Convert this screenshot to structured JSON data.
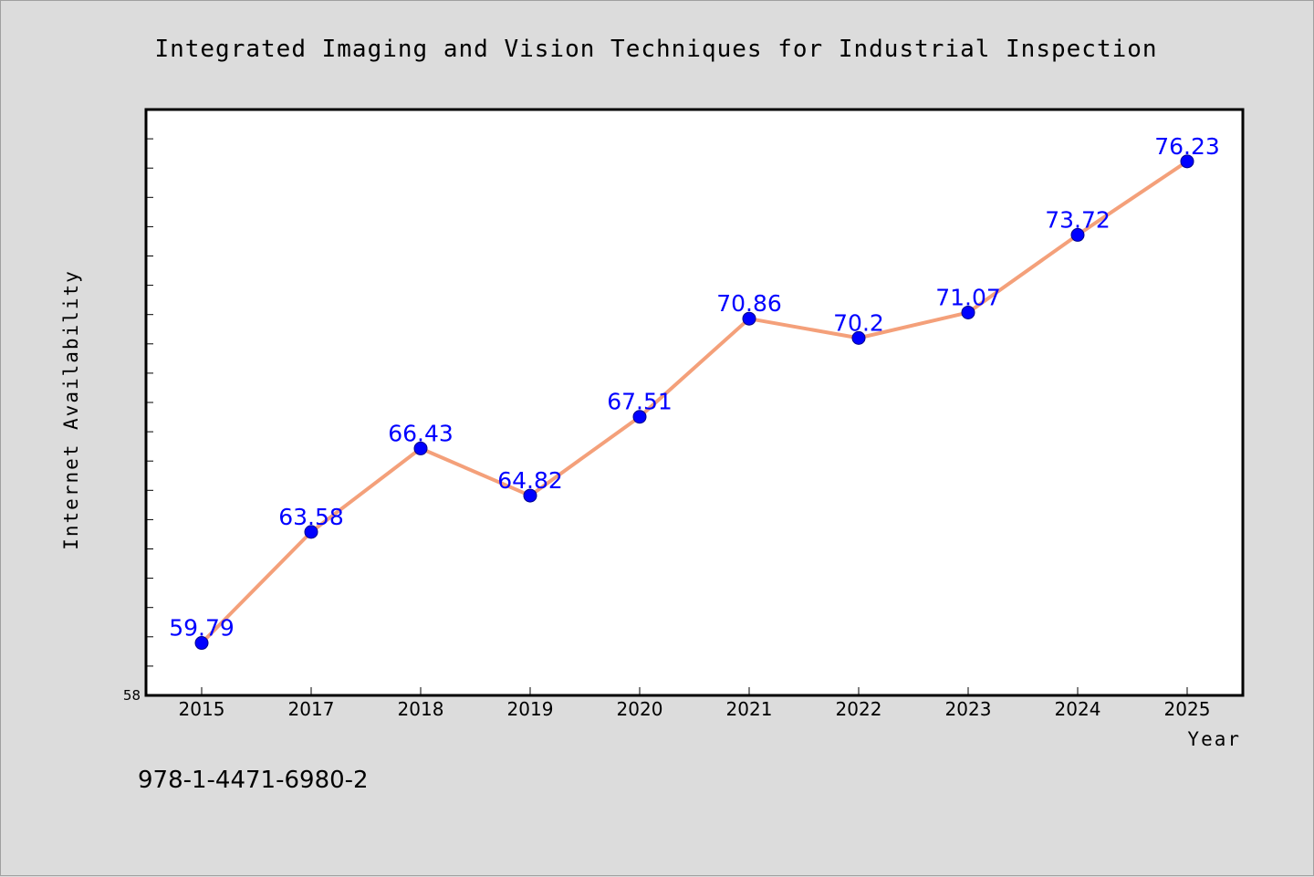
{
  "chart_data": {
    "type": "line",
    "title": "Integrated Imaging and Vision Techniques for Industrial Inspection",
    "xlabel": "Year",
    "ylabel": "Internet Availability",
    "categories": [
      "2015",
      "2017",
      "2018",
      "2019",
      "2020",
      "2021",
      "2022",
      "2023",
      "2024",
      "2025"
    ],
    "series": [
      {
        "values": [
          59.79,
          63.58,
          66.43,
          64.82,
          67.51,
          70.86,
          70.2,
          71.07,
          73.72,
          76.23
        ],
        "labels": [
          "59.79",
          "63.58",
          "66.43",
          "64.82",
          "67.51",
          "70.86",
          "70.2",
          "71.07",
          "73.72",
          "76.23"
        ]
      }
    ],
    "ylim": [
      58,
      78
    ],
    "yticks_labeled": [
      "58"
    ],
    "ytick_values": [
      59,
      60,
      61,
      62,
      63,
      64,
      65,
      66,
      67,
      68,
      69,
      70,
      71,
      72,
      73,
      74,
      75,
      76,
      77
    ],
    "line_color": "#f4a07a",
    "marker_color": "#0000ff",
    "label_color": "#0000ff",
    "grid": false,
    "legend": "none"
  },
  "footer": {
    "isbn": "978-1-4471-6980-2"
  }
}
